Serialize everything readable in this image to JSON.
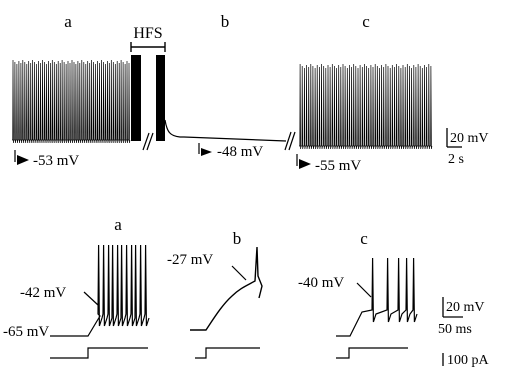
{
  "top_panel": {
    "segment_labels": {
      "a": "a",
      "b": "b",
      "c": "c"
    },
    "stim_label": "HFS",
    "potentials": {
      "a": "-53 mV",
      "b": "-48 mV",
      "c": "-55 mV"
    },
    "scalebar": {
      "voltage": "20 mV",
      "time": "2 s"
    }
  },
  "bottom_panel": {
    "panel_labels": {
      "a": "a",
      "b": "b",
      "c": "c"
    },
    "a": {
      "threshold": "-42 mV",
      "resting": "-65 mV"
    },
    "b": {
      "threshold": "-27 mV"
    },
    "c": {
      "threshold": "-40 mV"
    },
    "scalebar": {
      "voltage": "20 mV",
      "time": "50 ms",
      "current": "100 pA"
    }
  }
}
